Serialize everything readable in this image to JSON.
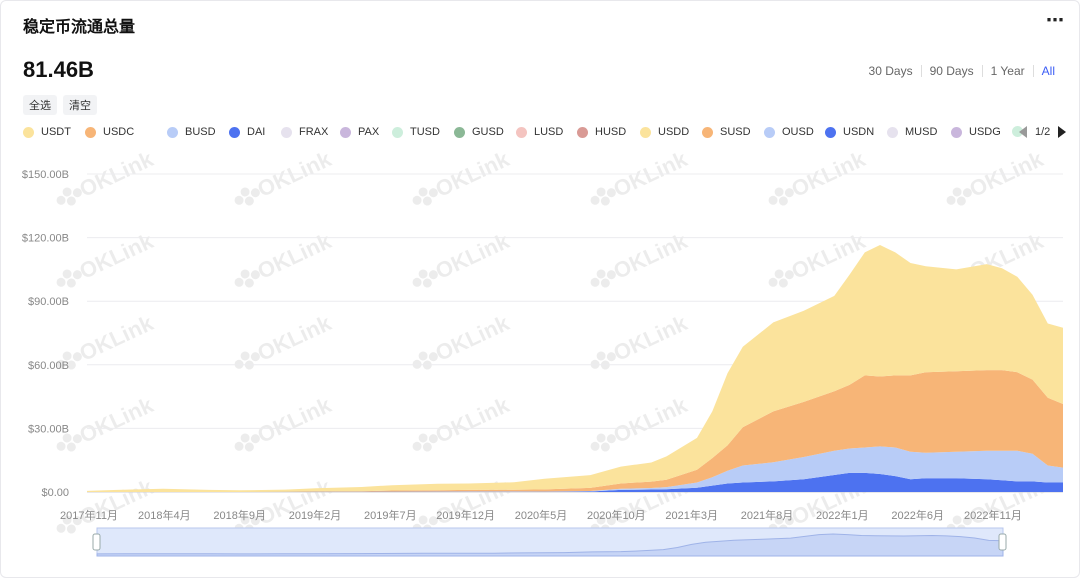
{
  "header": {
    "title": "稳定币流通总量",
    "more_icon": "⋯",
    "total": "81.46B"
  },
  "range": {
    "options": [
      "30 Days",
      "90 Days",
      "1 Year",
      "All"
    ],
    "active": "All"
  },
  "buttons": {
    "select_all": "全选",
    "clear": "清空"
  },
  "legend": {
    "items": [
      {
        "name": "USDT",
        "color": "#fbe39c"
      },
      {
        "name": "USDC",
        "color": "#f7b577"
      },
      {
        "name": "BUSD",
        "color": "#b8ccf7"
      },
      {
        "name": "DAI",
        "color": "#4d72f0"
      },
      {
        "name": "FRAX",
        "color": "#e6e2ee"
      },
      {
        "name": "PAX",
        "color": "#c9b6dc"
      },
      {
        "name": "TUSD",
        "color": "#cdeedc"
      },
      {
        "name": "GUSD",
        "color": "#8bb896"
      },
      {
        "name": "LUSD",
        "color": "#f4c4c0"
      },
      {
        "name": "HUSD",
        "color": "#d99a95"
      },
      {
        "name": "USDD",
        "color": "#fbe39c"
      },
      {
        "name": "SUSD",
        "color": "#f7b577"
      },
      {
        "name": "OUSD",
        "color": "#b8ccf7"
      },
      {
        "name": "USDN",
        "color": "#4d72f0"
      },
      {
        "name": "MUSD",
        "color": "#e6e2ee"
      },
      {
        "name": "USDG",
        "color": "#c9b6dc"
      },
      {
        "name": "",
        "color": "#cdeedc"
      }
    ],
    "page": "1/2"
  },
  "watermark": "OKLink",
  "chart_data": {
    "type": "area",
    "stacked": true,
    "x": [
      "2017-11",
      "2018-01",
      "2018-04",
      "2018-07",
      "2018-09",
      "2018-12",
      "2019-02",
      "2019-05",
      "2019-07",
      "2019-10",
      "2019-12",
      "2020-03",
      "2020-05",
      "2020-08",
      "2020-10",
      "2020-12",
      "2021-01",
      "2021-03",
      "2021-04",
      "2021-05",
      "2021-06",
      "2021-08",
      "2021-10",
      "2021-12",
      "2022-01",
      "2022-02",
      "2022-03",
      "2022-04",
      "2022-05",
      "2022-06",
      "2022-08",
      "2022-10",
      "2022-11",
      "2022-12",
      "2023-01",
      "2023-02",
      "2023-03"
    ],
    "series": [
      {
        "name": "DAI",
        "values": [
          0,
          0,
          0,
          0,
          0.02,
          0.05,
          0.08,
          0.08,
          0.1,
          0.1,
          0.1,
          0.12,
          0.13,
          0.25,
          1.0,
          1.2,
          1.3,
          2.0,
          3.0,
          4.0,
          4.5,
          5.0,
          6.0,
          8.0,
          9.0,
          9.0,
          8.5,
          7.5,
          6.0,
          6.5,
          6.5,
          6.0,
          5.5,
          5.0,
          5.0,
          4.5,
          4.5
        ]
      },
      {
        "name": "BUSD",
        "values": [
          0,
          0,
          0,
          0,
          0,
          0,
          0,
          0,
          0.1,
          0.15,
          0.2,
          0.15,
          0.1,
          0.2,
          0.5,
          0.7,
          1.0,
          2.5,
          4.0,
          6.0,
          8.0,
          9.0,
          10.5,
          11.5,
          11.5,
          12.0,
          13.0,
          13.5,
          13.0,
          12.0,
          12.5,
          13.5,
          14.0,
          14.5,
          13.0,
          8.0,
          7.0
        ]
      },
      {
        "name": "USDC",
        "values": [
          0,
          0,
          0,
          0,
          0,
          0.1,
          0.2,
          0.3,
          0.5,
          0.6,
          0.7,
          0.8,
          1.0,
          1.5,
          2.5,
          3.0,
          3.5,
          6.0,
          9.0,
          12.0,
          18.0,
          24.0,
          26.0,
          28.0,
          30.0,
          34.0,
          33.0,
          34.0,
          36.0,
          38.0,
          38.0,
          38.0,
          38.0,
          37.0,
          35.0,
          32.0,
          30.0
        ]
      },
      {
        "name": "USDT",
        "values": [
          0.5,
          1.0,
          1.5,
          1.0,
          0.8,
          1.0,
          1.5,
          2.0,
          2.5,
          3.0,
          3.0,
          3.5,
          5.0,
          6.0,
          8.0,
          9.0,
          11.0,
          15.0,
          22.0,
          34.0,
          38.0,
          42.0,
          43.0,
          45.0,
          52.0,
          58.0,
          62.0,
          58.0,
          53.0,
          50.0,
          48.0,
          50.0,
          48.0,
          45.0,
          40.0,
          35.0,
          36.0
        ]
      }
    ],
    "y_ticks": [
      "$0.00",
      "$30.00B",
      "$60.00B",
      "$90.00B",
      "$120.00B",
      "$150.00B"
    ],
    "ylim": [
      0,
      150
    ],
    "x_ticks": [
      "2017年11月",
      "2018年4月",
      "2018年9月",
      "2019年2月",
      "2019年7月",
      "2019年12月",
      "2020年5月",
      "2020年10月",
      "2021年3月",
      "2021年8月",
      "2022年1月",
      "2022年6月",
      "2022年11月"
    ],
    "grid": true,
    "legend_position": "top"
  }
}
